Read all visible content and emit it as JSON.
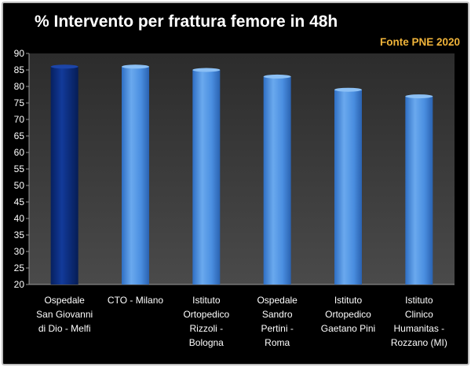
{
  "chart_data": {
    "type": "bar",
    "title": "% Intervento per frattura femore in 48h",
    "source": "Fonte PNE 2020",
    "categories": [
      "Ospedale San Giovanni di Dio - Melfi",
      "CTO - Milano",
      "Istituto Ortopedico Rizzoli - Bologna",
      "Ospedale Sandro Pertini - Roma",
      "Istituto Ortopedico Gaetano Pini",
      "Istituto Clinico Humanitas - Rozzano (MI)"
    ],
    "category_lines": [
      [
        "Ospedale",
        "San Giovanni",
        "di Dio - Melfi"
      ],
      [
        "CTO - Milano"
      ],
      [
        "Istituto",
        "Ortopedico",
        "Rizzoli -",
        "Bologna"
      ],
      [
        "Ospedale",
        "Sandro",
        "Pertini -",
        "Roma"
      ],
      [
        "Istituto",
        "Ortopedico",
        "Gaetano Pini"
      ],
      [
        "Istituto",
        "Clinico",
        "Humanitas -",
        "Rozzano (MI)"
      ]
    ],
    "values": [
      86,
      86,
      85,
      83,
      79,
      77
    ],
    "ylim": [
      20,
      90
    ],
    "yticks": [
      20,
      25,
      30,
      35,
      40,
      45,
      50,
      55,
      60,
      65,
      70,
      75,
      80,
      85,
      90
    ],
    "xlabel": "",
    "ylabel": "",
    "grid": false,
    "colors": {
      "highlight_bar": "#0a2a7a",
      "bar": "#4a8ee0",
      "plot_background": "#3a3a3a",
      "source_text": "#f0b43a"
    },
    "highlight_index": 0
  }
}
